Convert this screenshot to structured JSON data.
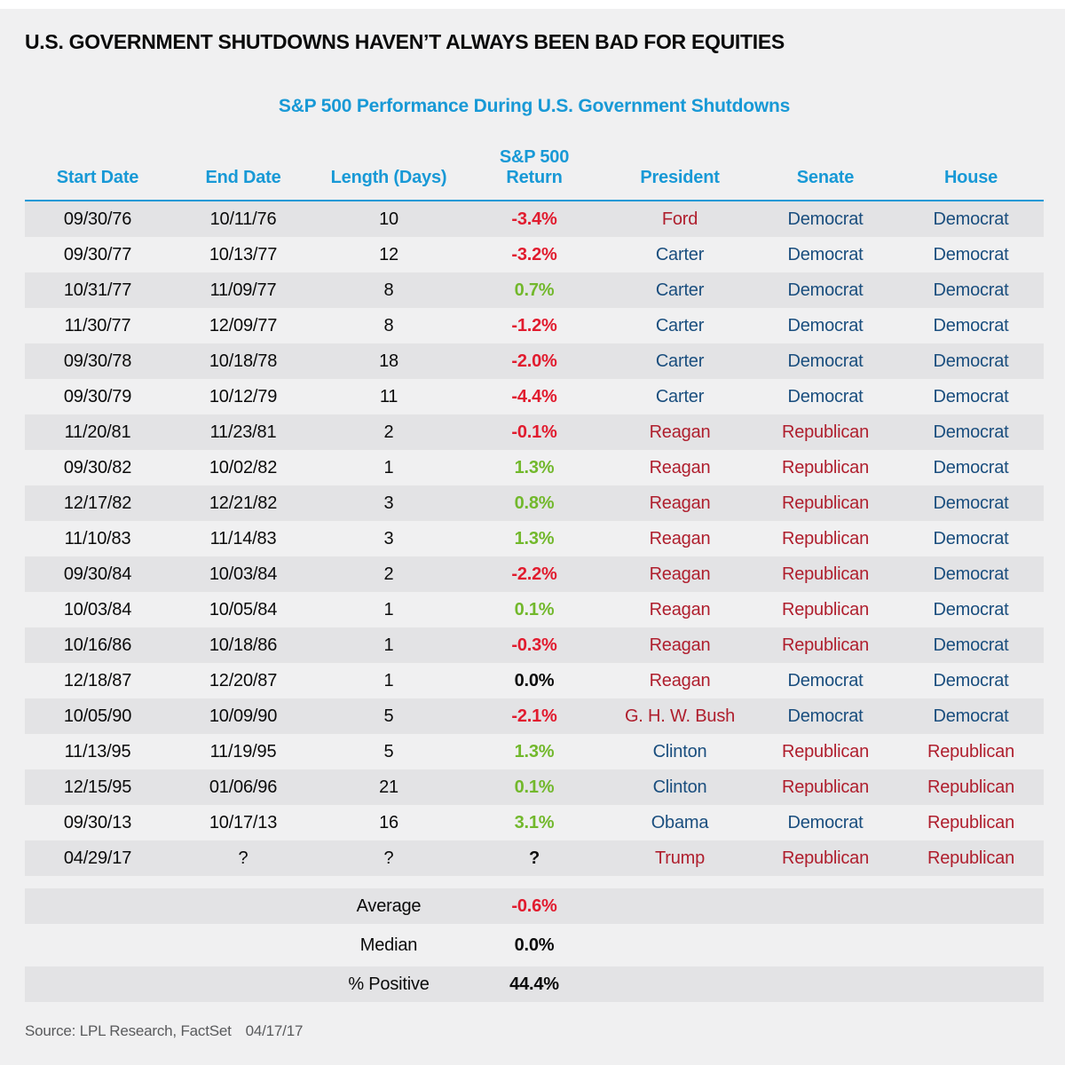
{
  "header": {
    "title": "U.S. GOVERNMENT SHUTDOWNS HAVEN’T ALWAYS BEEN BAD FOR EQUITIES",
    "subtitle": "S&P 500 Performance During U.S. Government Shutdowns"
  },
  "table": {
    "headers": [
      "Start Date",
      "End Date",
      "Length (Days)",
      "S&P 500\nReturn",
      "President",
      "Senate",
      "House"
    ]
  },
  "chart_data": {
    "type": "table",
    "title": "S&P 500 Performance During U.S. Government Shutdowns",
    "columns": [
      "Start Date",
      "End Date",
      "Length (Days)",
      "S&P 500 Return",
      "President",
      "Senate",
      "House"
    ],
    "rows": [
      {
        "start_date": "09/30/76",
        "end_date": "10/11/76",
        "length_days": "10",
        "sp500_return": "-3.4%",
        "return_tone": "negative",
        "president": "Ford",
        "president_party": "republican",
        "senate": "Democrat",
        "house": "Democrat"
      },
      {
        "start_date": "09/30/77",
        "end_date": "10/13/77",
        "length_days": "12",
        "sp500_return": "-3.2%",
        "return_tone": "negative",
        "president": "Carter",
        "president_party": "democrat",
        "senate": "Democrat",
        "house": "Democrat"
      },
      {
        "start_date": "10/31/77",
        "end_date": "11/09/77",
        "length_days": "8",
        "sp500_return": "0.7%",
        "return_tone": "positive",
        "president": "Carter",
        "president_party": "democrat",
        "senate": "Democrat",
        "house": "Democrat"
      },
      {
        "start_date": "11/30/77",
        "end_date": "12/09/77",
        "length_days": "8",
        "sp500_return": "-1.2%",
        "return_tone": "negative",
        "president": "Carter",
        "president_party": "democrat",
        "senate": "Democrat",
        "house": "Democrat"
      },
      {
        "start_date": "09/30/78",
        "end_date": "10/18/78",
        "length_days": "18",
        "sp500_return": "-2.0%",
        "return_tone": "negative",
        "president": "Carter",
        "president_party": "democrat",
        "senate": "Democrat",
        "house": "Democrat"
      },
      {
        "start_date": "09/30/79",
        "end_date": "10/12/79",
        "length_days": "11",
        "sp500_return": "-4.4%",
        "return_tone": "negative",
        "president": "Carter",
        "president_party": "democrat",
        "senate": "Democrat",
        "house": "Democrat"
      },
      {
        "start_date": "11/20/81",
        "end_date": "11/23/81",
        "length_days": "2",
        "sp500_return": "-0.1%",
        "return_tone": "negative",
        "president": "Reagan",
        "president_party": "republican",
        "senate": "Republican",
        "house": "Democrat"
      },
      {
        "start_date": "09/30/82",
        "end_date": "10/02/82",
        "length_days": "1",
        "sp500_return": "1.3%",
        "return_tone": "positive",
        "president": "Reagan",
        "president_party": "republican",
        "senate": "Republican",
        "house": "Democrat"
      },
      {
        "start_date": "12/17/82",
        "end_date": "12/21/82",
        "length_days": "3",
        "sp500_return": "0.8%",
        "return_tone": "positive",
        "president": "Reagan",
        "president_party": "republican",
        "senate": "Republican",
        "house": "Democrat"
      },
      {
        "start_date": "11/10/83",
        "end_date": "11/14/83",
        "length_days": "3",
        "sp500_return": "1.3%",
        "return_tone": "positive",
        "president": "Reagan",
        "president_party": "republican",
        "senate": "Republican",
        "house": "Democrat"
      },
      {
        "start_date": "09/30/84",
        "end_date": "10/03/84",
        "length_days": "2",
        "sp500_return": "-2.2%",
        "return_tone": "negative",
        "president": "Reagan",
        "president_party": "republican",
        "senate": "Republican",
        "house": "Democrat"
      },
      {
        "start_date": "10/03/84",
        "end_date": "10/05/84",
        "length_days": "1",
        "sp500_return": "0.1%",
        "return_tone": "positive",
        "president": "Reagan",
        "president_party": "republican",
        "senate": "Republican",
        "house": "Democrat"
      },
      {
        "start_date": "10/16/86",
        "end_date": "10/18/86",
        "length_days": "1",
        "sp500_return": "-0.3%",
        "return_tone": "negative",
        "president": "Reagan",
        "president_party": "republican",
        "senate": "Republican",
        "house": "Democrat"
      },
      {
        "start_date": "12/18/87",
        "end_date": "12/20/87",
        "length_days": "1",
        "sp500_return": "0.0%",
        "return_tone": "neutral",
        "president": "Reagan",
        "president_party": "republican",
        "senate": "Democrat",
        "house": "Democrat"
      },
      {
        "start_date": "10/05/90",
        "end_date": "10/09/90",
        "length_days": "5",
        "sp500_return": "-2.1%",
        "return_tone": "negative",
        "president": "G. H. W. Bush",
        "president_party": "republican",
        "senate": "Democrat",
        "house": "Democrat"
      },
      {
        "start_date": "11/13/95",
        "end_date": "11/19/95",
        "length_days": "5",
        "sp500_return": "1.3%",
        "return_tone": "positive",
        "president": "Clinton",
        "president_party": "democrat",
        "senate": "Republican",
        "house": "Republican"
      },
      {
        "start_date": "12/15/95",
        "end_date": "01/06/96",
        "length_days": "21",
        "sp500_return": "0.1%",
        "return_tone": "positive",
        "president": "Clinton",
        "president_party": "democrat",
        "senate": "Republican",
        "house": "Republican"
      },
      {
        "start_date": "09/30/13",
        "end_date": "10/17/13",
        "length_days": "16",
        "sp500_return": "3.1%",
        "return_tone": "positive",
        "president": "Obama",
        "president_party": "democrat",
        "senate": "Democrat",
        "house": "Republican"
      },
      {
        "start_date": "04/29/17",
        "end_date": "?",
        "length_days": "?",
        "sp500_return": "?",
        "return_tone": "neutral",
        "president": "Trump",
        "president_party": "republican",
        "senate": "Republican",
        "house": "Republican"
      }
    ],
    "summary_rows": [
      {
        "label": "Average",
        "value": "-0.6%",
        "tone": "negative"
      },
      {
        "label": "Median",
        "value": "0.0%",
        "tone": "neutral"
      },
      {
        "label": "% Positive",
        "value": "44.4%",
        "tone": "neutral"
      }
    ]
  },
  "footer": {
    "source": "Source: LPL Research, FactSet",
    "as_of_date": "04/17/17"
  },
  "colors": {
    "accent_blue": "#1899d6",
    "democrat_blue": "#1a4e7e",
    "republican_red": "#af1e2d",
    "negative_return_red": "#e11b2e",
    "positive_return_green": "#72b82c",
    "neutral_text": "#0b0b0b",
    "stripe_gray": "#e3e3e5",
    "page_background": "#f0f0f1",
    "source_gray": "#595a5c"
  }
}
